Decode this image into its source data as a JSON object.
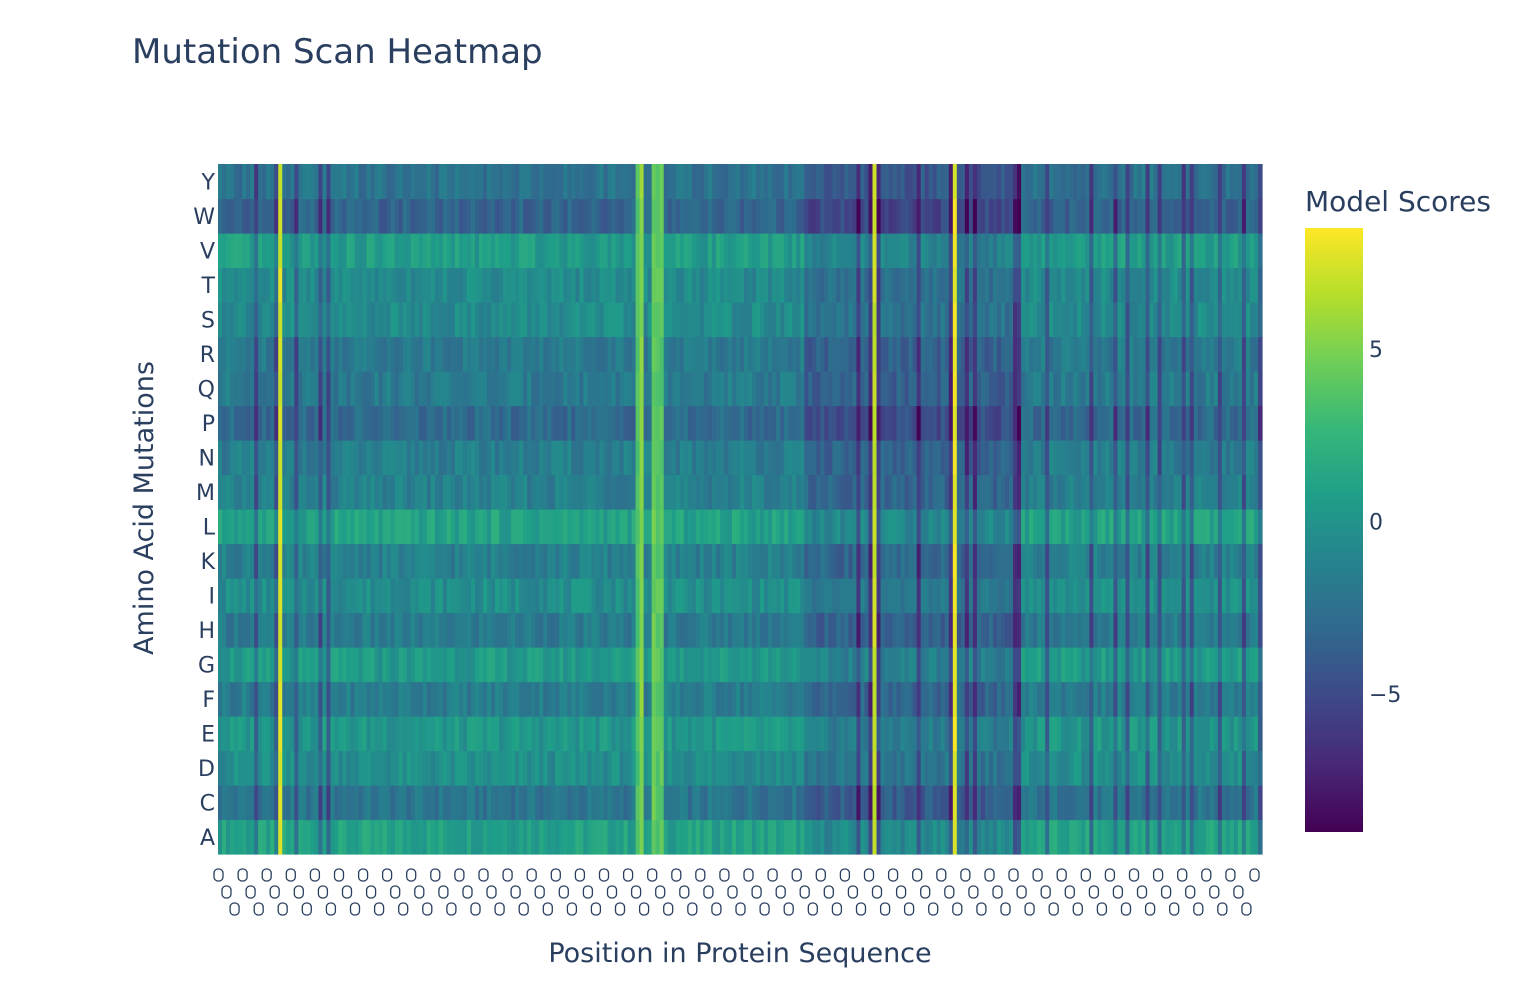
{
  "chart_data": {
    "type": "heatmap",
    "title": "Mutation Scan Heatmap",
    "xlabel": "Position in Protein Sequence",
    "ylabel": "Amino Acid Mutations",
    "colorbar_title": "Model Scores",
    "colorscale": "Viridis",
    "colorscale_stops": [
      "#440154",
      "#482878",
      "#3e4989",
      "#31688e",
      "#26828e",
      "#1f9e89",
      "#35b779",
      "#6ece58",
      "#b5de2b",
      "#fde725"
    ],
    "zlim": [
      -9,
      8.5
    ],
    "colorbar_ticks": [
      {
        "value": 5,
        "label": "5"
      },
      {
        "value": 0,
        "label": "0"
      },
      {
        "value": -5,
        "label": "−5"
      }
    ],
    "y_categories": [
      "A",
      "C",
      "D",
      "E",
      "F",
      "G",
      "H",
      "I",
      "K",
      "L",
      "M",
      "N",
      "P",
      "Q",
      "R",
      "S",
      "T",
      "V",
      "W",
      "Y"
    ],
    "n_positions": 260,
    "grid": false,
    "legend": "colorbar-right"
  }
}
